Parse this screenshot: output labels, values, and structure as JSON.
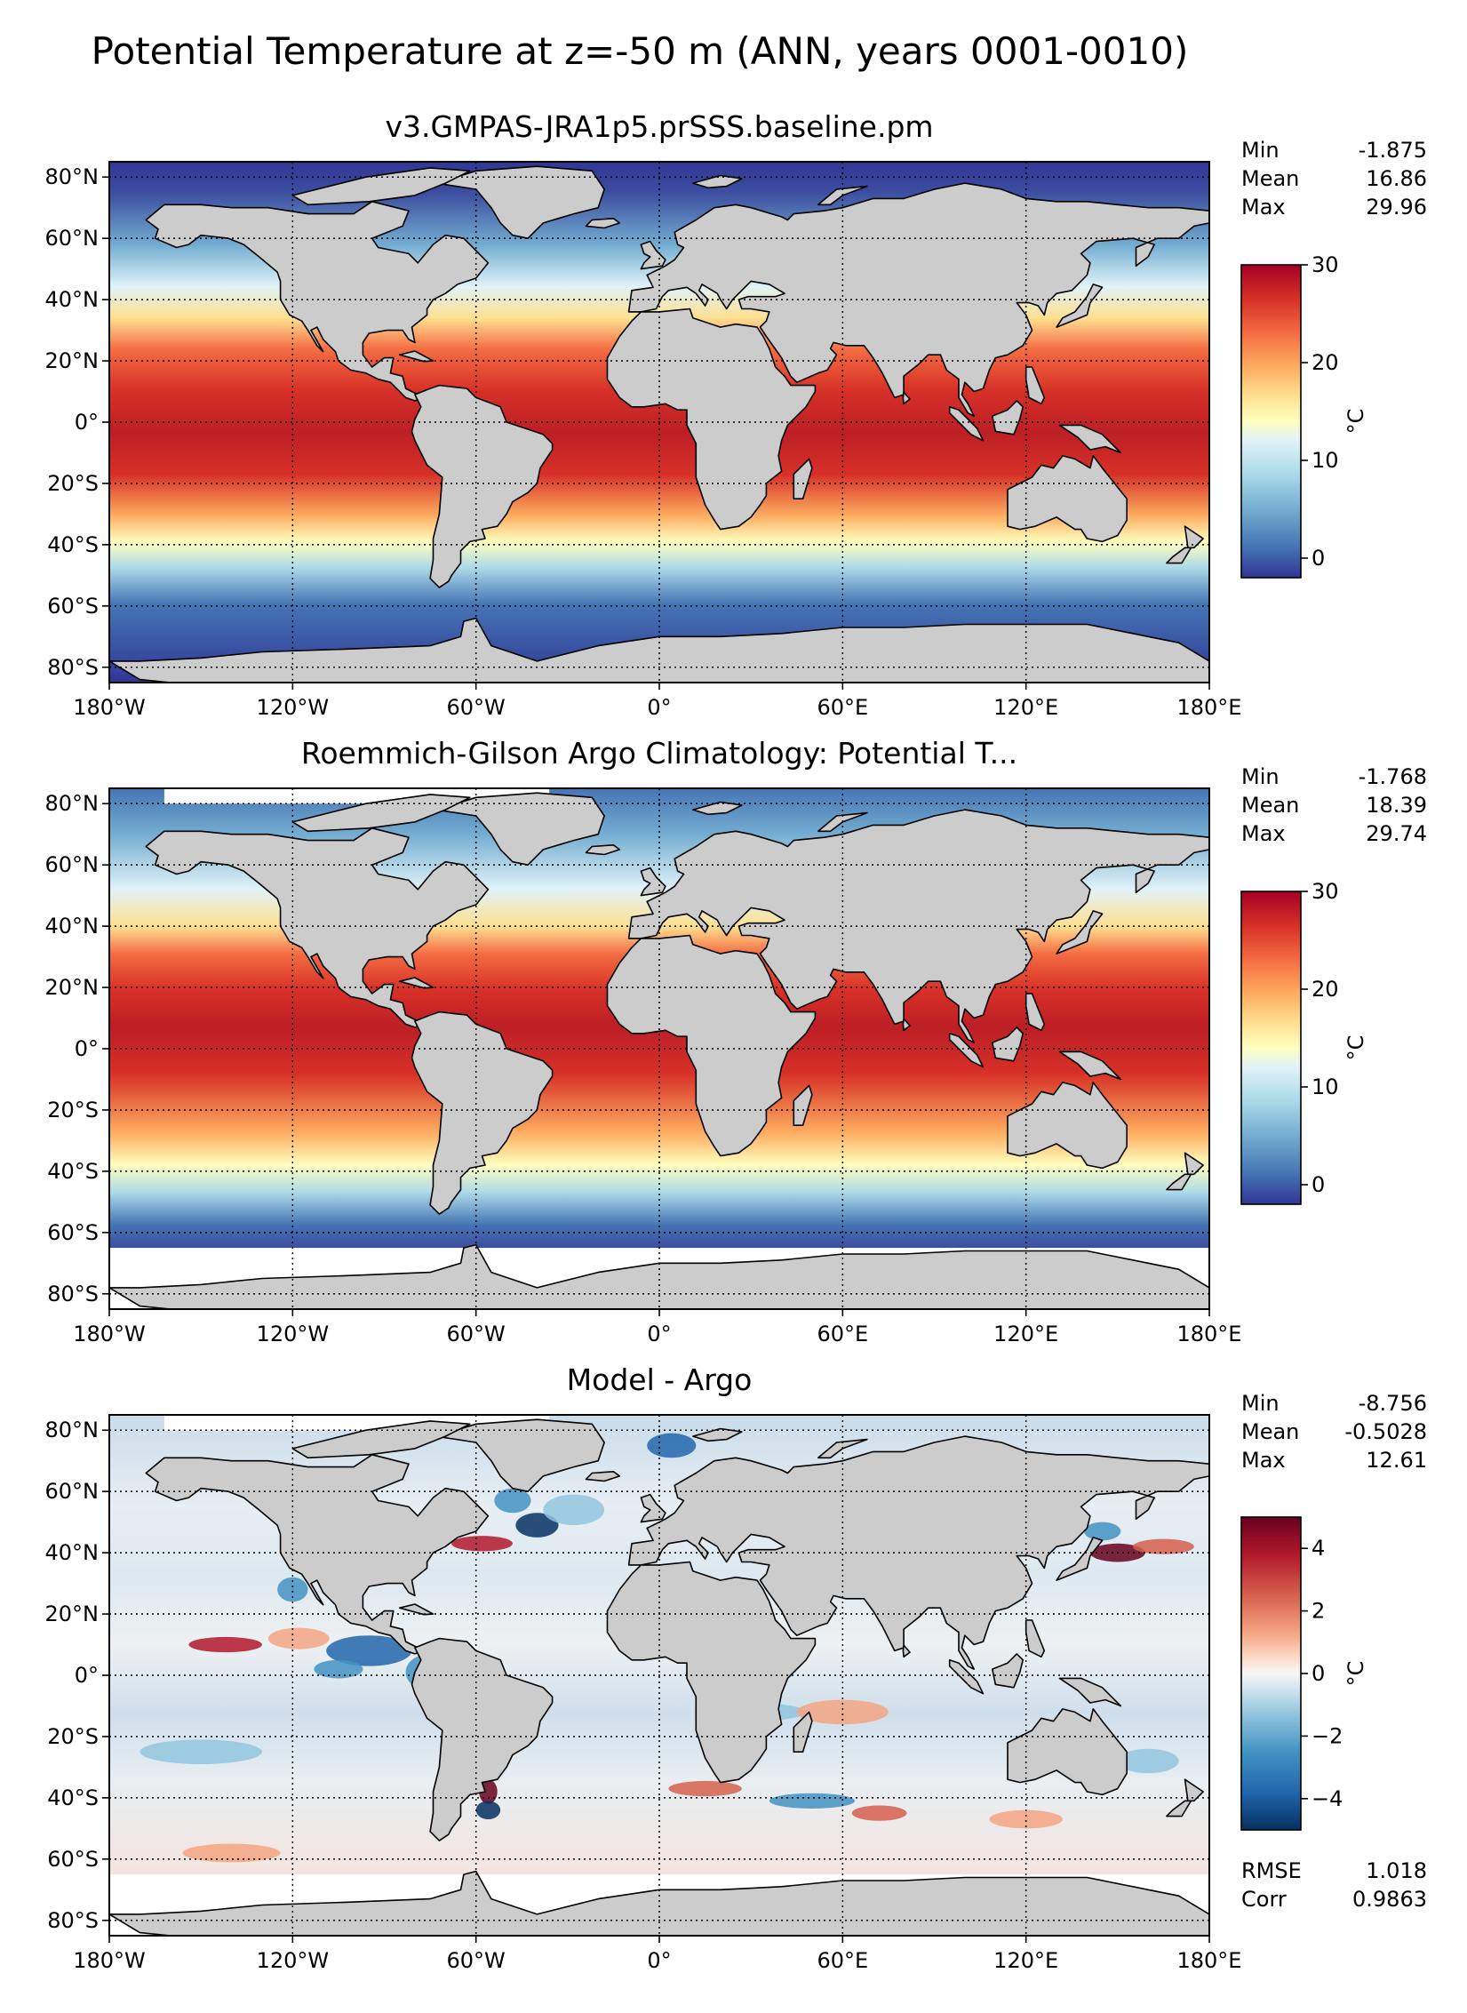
{
  "figure_title": "Potential Temperature at z=-50 m (ANN, years 0001-0010)",
  "chart_data": [
    {
      "type": "heatmap",
      "title": "v3.GMPAS-JRA1p5.prSSS.baseline.pm",
      "variable": "Potential Temperature",
      "units": "°C",
      "xlim": [
        -180,
        180
      ],
      "ylim": [
        -85,
        85
      ],
      "x_ticks": [
        "180°W",
        "120°W",
        "60°W",
        "0°",
        "60°E",
        "120°E",
        "180°E"
      ],
      "y_ticks": [
        "80°N",
        "60°N",
        "40°N",
        "20°N",
        "0°",
        "20°S",
        "40°S",
        "60°S",
        "80°S"
      ],
      "stats": [
        {
          "label": "Min",
          "value": "-1.875"
        },
        {
          "label": "Mean",
          "value": "16.86"
        },
        {
          "label": "Max",
          "value": "29.96"
        }
      ],
      "colorbar": {
        "label": "°C",
        "range": [
          -2,
          30
        ],
        "ticks": [
          "0",
          "10",
          "20",
          "30"
        ],
        "colormap": "RdYlBu_r"
      }
    },
    {
      "type": "heatmap",
      "title": "Roemmich-Gilson Argo Climatology: Potential T...",
      "variable": "Potential Temperature",
      "units": "°C",
      "xlim": [
        -180,
        180
      ],
      "ylim": [
        -85,
        85
      ],
      "data_south_limit": -65,
      "x_ticks": [
        "180°W",
        "120°W",
        "60°W",
        "0°",
        "60°E",
        "120°E",
        "180°E"
      ],
      "y_ticks": [
        "80°N",
        "60°N",
        "40°N",
        "20°N",
        "0°",
        "20°S",
        "40°S",
        "60°S",
        "80°S"
      ],
      "stats": [
        {
          "label": "Min",
          "value": "-1.768"
        },
        {
          "label": "Mean",
          "value": "18.39"
        },
        {
          "label": "Max",
          "value": "29.74"
        }
      ],
      "colorbar": {
        "label": "°C",
        "range": [
          -2,
          30
        ],
        "ticks": [
          "0",
          "10",
          "20",
          "30"
        ],
        "colormap": "RdYlBu_r"
      }
    },
    {
      "type": "heatmap",
      "title": "Model - Argo",
      "variable": "Potential Temperature difference",
      "units": "°C",
      "xlim": [
        -180,
        180
      ],
      "ylim": [
        -85,
        85
      ],
      "data_south_limit": -65,
      "x_ticks": [
        "180°W",
        "120°W",
        "60°W",
        "0°",
        "60°E",
        "120°E",
        "180°E"
      ],
      "y_ticks": [
        "80°N",
        "60°N",
        "40°N",
        "20°N",
        "0°",
        "20°S",
        "40°S",
        "60°S",
        "80°S"
      ],
      "stats": [
        {
          "label": "Min",
          "value": "-8.756"
        },
        {
          "label": "Mean",
          "value": "-0.5028"
        },
        {
          "label": "Max",
          "value": "12.61"
        }
      ],
      "extra_stats": [
        {
          "label": "RMSE",
          "value": "1.018"
        },
        {
          "label": "Corr",
          "value": "0.9863"
        }
      ],
      "colorbar": {
        "label": "°C",
        "range": [
          -5,
          5
        ],
        "ticks": [
          "−4",
          "−2",
          "0",
          "2",
          "4"
        ],
        "colormap": "RdBu_r"
      }
    }
  ]
}
